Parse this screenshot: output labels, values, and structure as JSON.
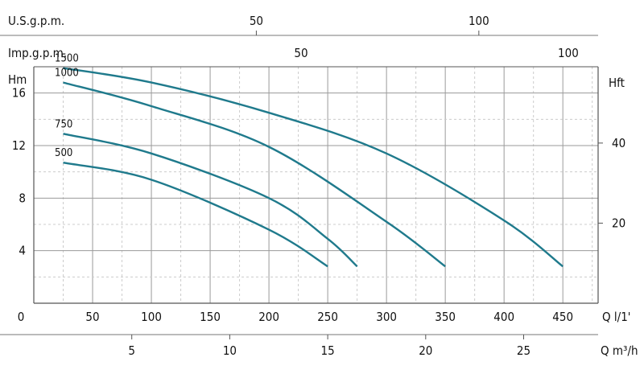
{
  "chart_data": {
    "type": "line",
    "xlabel": "Q l/1'",
    "ylabel": "Hm",
    "xlim": [
      0,
      480
    ],
    "ylim": [
      0,
      18
    ],
    "x_ticks": [
      0,
      50,
      100,
      150,
      200,
      250,
      300,
      350,
      400,
      450
    ],
    "y_ticks": [
      4,
      8,
      12,
      16
    ],
    "grid": true,
    "secondary_axes": {
      "right": {
        "label": "Hft",
        "ticks": [
          20,
          40
        ]
      },
      "top_usgpm": {
        "label": "U.S.g.p.m.",
        "ticks": [
          50,
          100
        ]
      },
      "top_impgpm": {
        "label": "Imp.g.p.m.",
        "ticks": [
          50,
          100
        ]
      },
      "bottom_m3h": {
        "label": "Q m³/h",
        "ticks": [
          5,
          10,
          15,
          20,
          25
        ]
      }
    },
    "series": [
      {
        "name": "1500",
        "x": [
          25,
          100,
          200,
          300,
          400,
          450
        ],
        "y": [
          17.9,
          16.8,
          14.5,
          11.4,
          6.3,
          2.8
        ]
      },
      {
        "name": "1000",
        "x": [
          25,
          100,
          200,
          300,
          350
        ],
        "y": [
          16.8,
          15.0,
          11.9,
          6.2,
          2.8
        ]
      },
      {
        "name": "750",
        "x": [
          25,
          100,
          200,
          250,
          275
        ],
        "y": [
          12.9,
          11.4,
          8.0,
          4.9,
          2.8
        ]
      },
      {
        "name": "500",
        "x": [
          25,
          100,
          200,
          250
        ],
        "y": [
          10.7,
          9.4,
          5.6,
          2.8
        ]
      }
    ],
    "color": "#1f7a8c"
  }
}
